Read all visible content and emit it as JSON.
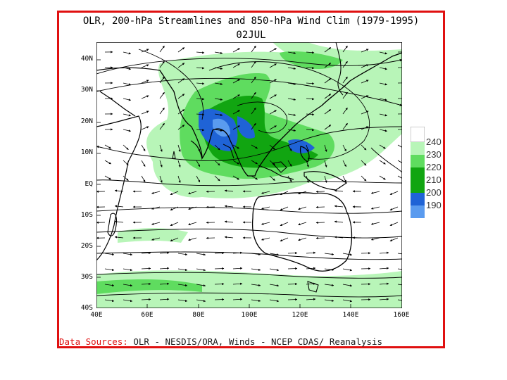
{
  "title": "OLR, 200-hPa Streamlines and 850-hPa Wind Clim (1979-1995)",
  "date": "02JUL",
  "lat_labels": [
    "40N",
    "30N",
    "20N",
    "10N",
    "EQ",
    "10S",
    "20S",
    "30S",
    "40S"
  ],
  "lon_labels": [
    "40E",
    "60E",
    "80E",
    "100E",
    "120E",
    "140E",
    "160E"
  ],
  "map_extent": {
    "lon": [
      40,
      160
    ],
    "lat": [
      -40,
      45
    ]
  },
  "legend": {
    "levels": [
      "240",
      "230",
      "220",
      "210",
      "200",
      "190"
    ],
    "colors": [
      "#ffffff",
      "#b8f5b8",
      "#5fdc5f",
      "#11a511",
      "#1f63d6",
      "#5a9bef"
    ]
  },
  "source": {
    "label": "Data Sources:",
    "text": " OLR - NESDIS/ORA, Winds - NCEP CDAS/ Reanalysis"
  },
  "frame_color": "#e01010"
}
